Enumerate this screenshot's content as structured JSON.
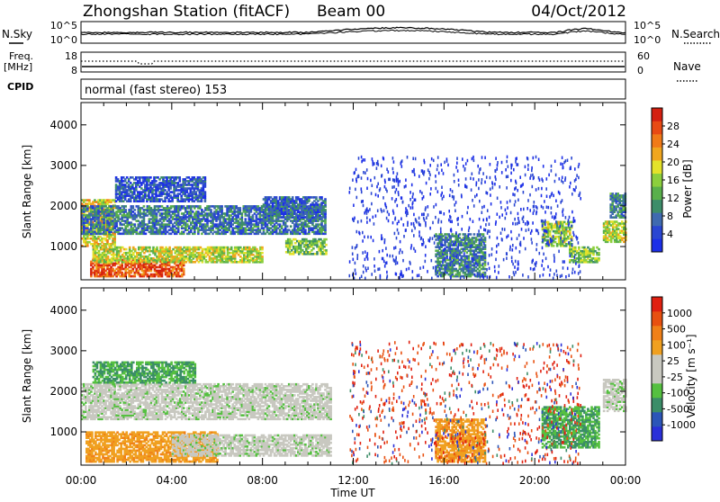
{
  "header": {
    "station": "Zhongshan Station (fitACF)",
    "beam": "Beam 00",
    "date": "04/Oct/2012"
  },
  "top_panels": {
    "nsky_label": "N.Sky",
    "nsky_ticks": [
      "10^5",
      "10^0"
    ],
    "nsearch_label": "N.Search",
    "nsearch_ticks": [
      "10^5",
      "10^0"
    ],
    "freq_label": "Freq.",
    "freq_unit": "[MHz]",
    "freq_ticks": [
      "18",
      "8"
    ],
    "nave_label": "Nave",
    "nave_ticks": [
      "60",
      "0"
    ],
    "cpid_label": "CPID",
    "cpid_text": "normal (fast stereo) 153"
  },
  "chart_data": [
    {
      "type": "heatmap",
      "name_key": "power",
      "xlabel": "Time UT",
      "ylabel": "Slant Range [km]",
      "x_ticks": [
        "00:00",
        "04:00",
        "08:00",
        "12:00",
        "16:00",
        "20:00",
        "00:00"
      ],
      "xlim_hours": [
        0,
        24
      ],
      "ylim": [
        180,
        4550
      ],
      "y_ticks": [
        1000,
        2000,
        3000,
        4000
      ],
      "colorbar": {
        "label": "Power [dB]",
        "ticks": [
          "4",
          "8",
          "12",
          "16",
          "20",
          "24",
          "28"
        ],
        "colors": [
          "#1c2fe8",
          "#2a46d2",
          "#3f6ab0",
          "#3d8d6a",
          "#59b04b",
          "#8ccf3d",
          "#e4e22a",
          "#f0a61e",
          "#f07a18",
          "#e84a14",
          "#d42010"
        ]
      },
      "regions": [
        {
          "t0": 0.4,
          "t1": 4.5,
          "r0": 250,
          "r1": 700,
          "level": 0.85
        },
        {
          "t0": 0.0,
          "t1": 1.5,
          "r0": 1000,
          "r1": 2150,
          "level": 0.6
        },
        {
          "t0": 0.0,
          "t1": 10.8,
          "r0": 1300,
          "r1": 2000,
          "level": 0.25
        },
        {
          "t0": 0.5,
          "t1": 8.0,
          "r0": 600,
          "r1": 1000,
          "level": 0.55
        },
        {
          "t0": 8.0,
          "t1": 10.8,
          "r0": 1700,
          "r1": 2200,
          "level": 0.2
        },
        {
          "t0": 9.0,
          "t1": 10.8,
          "r0": 800,
          "r1": 1200,
          "level": 0.45
        },
        {
          "t0": 1.5,
          "t1": 5.5,
          "r0": 2100,
          "r1": 2700,
          "level": 0.15
        },
        {
          "t0": 15.6,
          "t1": 17.8,
          "r0": 250,
          "r1": 1300,
          "level": 0.3
        },
        {
          "t0": 20.3,
          "t1": 21.6,
          "r0": 1000,
          "r1": 1600,
          "level": 0.5
        },
        {
          "t0": 21.5,
          "t1": 22.8,
          "r0": 600,
          "r1": 1000,
          "level": 0.45
        },
        {
          "t0": 23.0,
          "t1": 24.0,
          "r0": 1100,
          "r1": 1600,
          "level": 0.55
        },
        {
          "t0": 23.3,
          "t1": 24.0,
          "r0": 1700,
          "r1": 2300,
          "level": 0.3
        }
      ]
    },
    {
      "type": "heatmap",
      "name_key": "velocity",
      "xlabel": "Time UT",
      "ylabel": "Slant Range [km]",
      "x_ticks": [
        "00:00",
        "04:00",
        "08:00",
        "12:00",
        "16:00",
        "20:00",
        "00:00"
      ],
      "xlim_hours": [
        0,
        24
      ],
      "ylim": [
        180,
        4550
      ],
      "y_ticks": [
        1000,
        2000,
        3000,
        4000
      ],
      "colorbar": {
        "label": "Velocity [m s⁻¹]",
        "ticks": [
          "1000",
          "500",
          "100",
          "25",
          "-25",
          "-100",
          "-500",
          "-1000"
        ],
        "colors": [
          "#2a2fd8",
          "#2c55b8",
          "#3b8d68",
          "#55c040",
          "#c8c8c0",
          "#c8c8c0",
          "#f0a020",
          "#f08018",
          "#e85010",
          "#e02010"
        ]
      },
      "regions": [
        {
          "t0": 0.2,
          "t1": 6.0,
          "r0": 250,
          "r1": 1000,
          "level": "orange"
        },
        {
          "t0": 0.0,
          "t1": 11.0,
          "r0": 1300,
          "r1": 2200,
          "level": "gray"
        },
        {
          "t0": 4.0,
          "t1": 11.0,
          "r0": 400,
          "r1": 900,
          "level": "gray"
        },
        {
          "t0": 0.5,
          "t1": 5.0,
          "r0": 2200,
          "r1": 2700,
          "level": "green"
        },
        {
          "t0": 15.6,
          "t1": 17.8,
          "r0": 250,
          "r1": 1300,
          "level": "orange"
        },
        {
          "t0": 20.3,
          "t1": 22.8,
          "r0": 600,
          "r1": 1600,
          "level": "green"
        },
        {
          "t0": 23.0,
          "t1": 24.0,
          "r0": 1500,
          "r1": 2300,
          "level": "gray"
        }
      ]
    }
  ]
}
